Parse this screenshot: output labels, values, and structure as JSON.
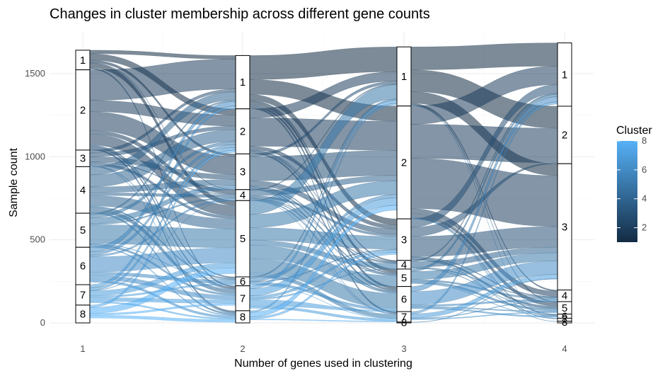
{
  "chart_data": {
    "type": "alluvial",
    "title": "Changes in cluster membership across different gene counts",
    "xlabel": "Number of genes used in clustering",
    "ylabel": "Sample count",
    "x": [
      1,
      2,
      3,
      4
    ],
    "x_tick_labels": [
      "1",
      "2",
      "3",
      "4"
    ],
    "ylim": [
      0,
      1690
    ],
    "y_ticks": [
      0,
      500,
      1000,
      1500
    ],
    "y_tick_labels": [
      "0",
      "500",
      "1000",
      "1500"
    ],
    "grid": true,
    "color_scale": {
      "title": "Cluster",
      "min": 1,
      "max": 8,
      "low_color": "#132b43",
      "high_color": "#56b1f7",
      "ticks": [
        2,
        4,
        6,
        8
      ],
      "tick_labels": [
        "2",
        "4",
        "6",
        "8"
      ]
    },
    "legend_position": "right",
    "axes": [
      {
        "x": 1,
        "strata": [
          {
            "label": "1",
            "size": 118
          },
          {
            "label": "2",
            "size": 483
          },
          {
            "label": "3",
            "size": 100
          },
          {
            "label": "4",
            "size": 280
          },
          {
            "label": "5",
            "size": 205
          },
          {
            "label": "6",
            "size": 225
          },
          {
            "label": "7",
            "size": 123
          },
          {
            "label": "8",
            "size": 107
          }
        ]
      },
      {
        "x": 2,
        "strata": [
          {
            "label": "1",
            "size": 321
          },
          {
            "label": "2",
            "size": 271
          },
          {
            "label": "3",
            "size": 215
          },
          {
            "label": "4",
            "size": 66
          },
          {
            "label": "5",
            "size": 459
          },
          {
            "label": "6",
            "size": 54
          },
          {
            "label": "7",
            "size": 150
          },
          {
            "label": "8",
            "size": 73
          }
        ]
      },
      {
        "x": 3,
        "strata": [
          {
            "label": "1",
            "size": 356
          },
          {
            "label": "2",
            "size": 679
          },
          {
            "label": "3",
            "size": 250
          },
          {
            "label": "4",
            "size": 52
          },
          {
            "label": "5",
            "size": 105
          },
          {
            "label": "6",
            "size": 151
          },
          {
            "label": "7",
            "size": 63
          },
          {
            "label": "8",
            "size": 5
          }
        ]
      },
      {
        "x": 4,
        "strata": [
          {
            "label": "1",
            "size": 381
          },
          {
            "label": "2",
            "size": 346
          },
          {
            "label": "3",
            "size": 760
          },
          {
            "label": "4",
            "size": 70
          },
          {
            "label": "5",
            "size": 75
          },
          {
            "label": "6",
            "size": 25
          },
          {
            "label": "7",
            "size": 18
          },
          {
            "label": "8",
            "size": 10
          }
        ]
      }
    ]
  }
}
